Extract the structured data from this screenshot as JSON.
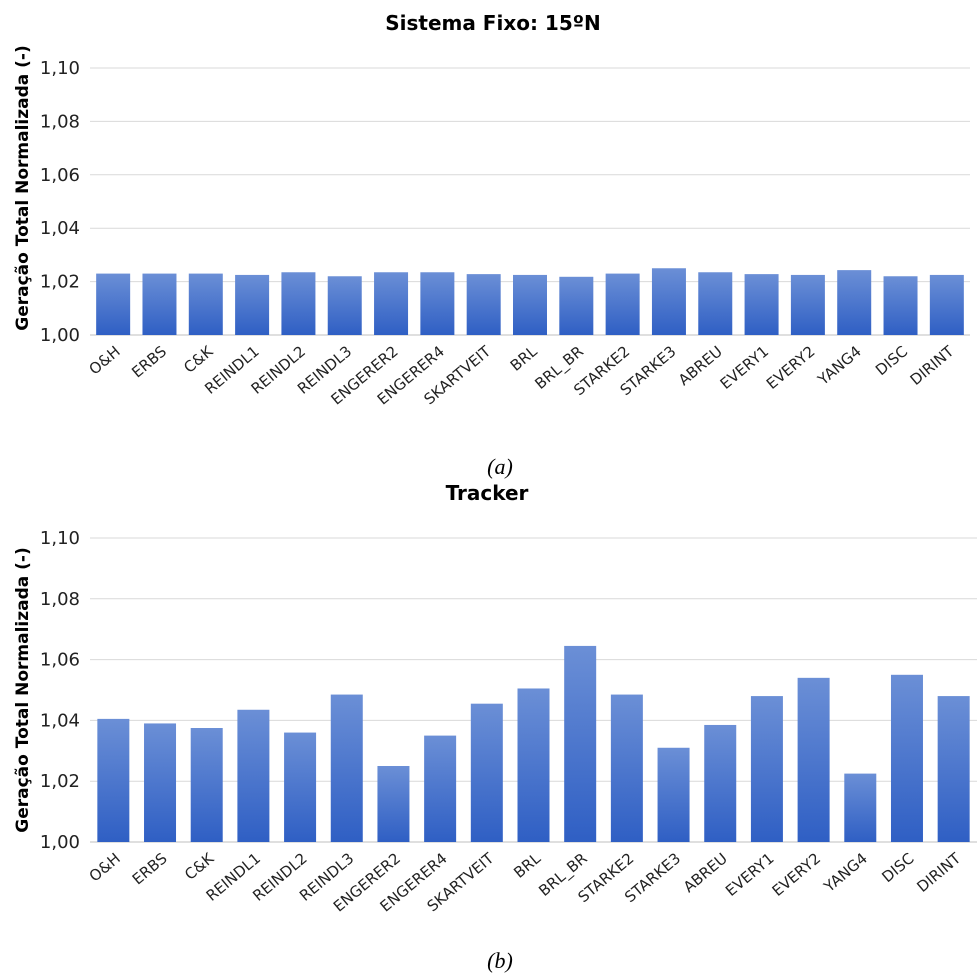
{
  "chart_data": [
    {
      "type": "bar",
      "title": "Sistema Fixo: 15ºN",
      "ylabel": "Geração Total Normalizada (-)",
      "xlabel": "",
      "ylim": [
        1.0,
        1.1
      ],
      "yticks": [
        "1,00",
        "1,02",
        "1,04",
        "1,06",
        "1,08",
        "1,10"
      ],
      "ytick_values": [
        1.0,
        1.02,
        1.04,
        1.06,
        1.08,
        1.1
      ],
      "grid": true,
      "caption": "(a)",
      "bar_color": "#4472c4",
      "categories": [
        "O&H",
        "ERBS",
        "C&K",
        "REINDL1",
        "REINDL2",
        "REINDL3",
        "ENGERER2",
        "ENGERER4",
        "SKARTVEIT",
        "BRL",
        "BRL_BR",
        "STARKE2",
        "STARKE3",
        "ABREU",
        "EVERY1",
        "EVERY2",
        "YANG4",
        "DISC",
        "DIRINT"
      ],
      "values": [
        1.023,
        1.023,
        1.023,
        1.0225,
        1.0235,
        1.022,
        1.0235,
        1.0235,
        1.0228,
        1.0225,
        1.0218,
        1.023,
        1.025,
        1.0235,
        1.0228,
        1.0225,
        1.0243,
        1.022,
        1.0225
      ]
    },
    {
      "type": "bar",
      "title": "Tracker",
      "ylabel": "Geração Total Normalizada (-)",
      "xlabel": "",
      "ylim": [
        1.0,
        1.1
      ],
      "yticks": [
        "1,00",
        "1,02",
        "1,04",
        "1,06",
        "1,08",
        "1,10"
      ],
      "ytick_values": [
        1.0,
        1.02,
        1.04,
        1.06,
        1.08,
        1.1
      ],
      "grid": true,
      "caption": "(b)",
      "bar_color": "#4472c4",
      "categories": [
        "O&H",
        "ERBS",
        "C&K",
        "REINDL1",
        "REINDL2",
        "REINDL3",
        "ENGERER2",
        "ENGERER4",
        "SKARTVEIT",
        "BRL",
        "BRL_BR",
        "STARKE2",
        "STARKE3",
        "ABREU",
        "EVERY1",
        "EVERY2",
        "YANG4",
        "DISC",
        "DIRINT"
      ],
      "values": [
        1.0405,
        1.039,
        1.0375,
        1.0435,
        1.036,
        1.0485,
        1.025,
        1.035,
        1.0455,
        1.0505,
        1.0645,
        1.0485,
        1.031,
        1.0385,
        1.048,
        1.054,
        1.0225,
        1.055,
        1.048
      ]
    }
  ]
}
